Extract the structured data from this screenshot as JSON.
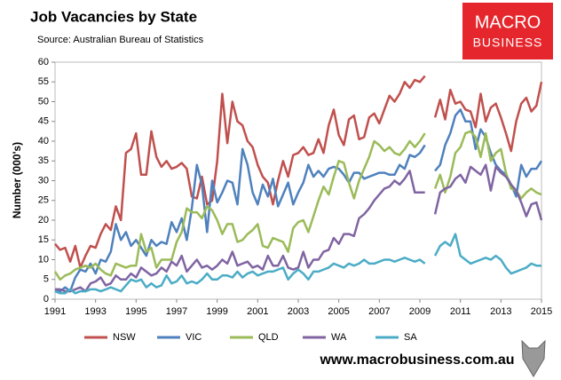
{
  "chart_data": {
    "type": "line",
    "title": "Job Vacancies by State",
    "subtitle": "Source: Australian Bureau of Statistics",
    "ylabel": "Number (000's)",
    "brand": {
      "line1": "MACRO",
      "line2": "BUSINESS",
      "url": "www.macrobusiness.com.au"
    },
    "x": [
      1991,
      1991.25,
      1991.5,
      1991.75,
      1992,
      1992.25,
      1992.5,
      1992.75,
      1993,
      1993.25,
      1993.5,
      1993.75,
      1994,
      1994.25,
      1994.5,
      1994.75,
      1995,
      1995.25,
      1995.5,
      1995.75,
      1996,
      1996.25,
      1996.5,
      1996.75,
      1997,
      1997.25,
      1997.5,
      1997.75,
      1998,
      1998.25,
      1998.5,
      1998.75,
      1999,
      1999.25,
      1999.5,
      1999.75,
      2000,
      2000.25,
      2000.5,
      2000.75,
      2001,
      2001.25,
      2001.5,
      2001.75,
      2002,
      2002.25,
      2002.5,
      2002.75,
      2003,
      2003.25,
      2003.5,
      2003.75,
      2004,
      2004.25,
      2004.5,
      2004.75,
      2005,
      2005.25,
      2005.5,
      2005.75,
      2006,
      2006.25,
      2006.5,
      2006.75,
      2007,
      2007.25,
      2007.5,
      2007.75,
      2008,
      2008.25,
      2008.5,
      2008.75,
      2009,
      2009.25,
      2009.5,
      2009.75,
      2010,
      2010.25,
      2010.5,
      2010.75,
      2011,
      2011.25,
      2011.5,
      2011.75,
      2012,
      2012.25,
      2012.5,
      2012.75,
      2013,
      2013.25,
      2013.5,
      2013.75,
      2014,
      2014.25,
      2014.5,
      2014.75,
      2015
    ],
    "series": [
      {
        "name": "NSW",
        "color": "#c0504d",
        "values": [
          14,
          12.5,
          13,
          9.5,
          13.5,
          8,
          11,
          13.5,
          13,
          16.5,
          19,
          17.5,
          23.5,
          20,
          37,
          38,
          42,
          31.5,
          31.5,
          42.5,
          36,
          33.5,
          35,
          33,
          33.5,
          34.5,
          33,
          26,
          25.5,
          31,
          24,
          25,
          35,
          52,
          39.5,
          50,
          45,
          44,
          40,
          38.5,
          34,
          31,
          29.5,
          24,
          30,
          35,
          31,
          36.5,
          37,
          38.5,
          36.5,
          37,
          40.5,
          37,
          44,
          48,
          41.5,
          39,
          45.5,
          46.5,
          40.5,
          41,
          46,
          47,
          44.5,
          48,
          51.5,
          50,
          52,
          55,
          53.5,
          55.5,
          55,
          56.5,
          null,
          46,
          50.5,
          45.5,
          53,
          49.5,
          50,
          48,
          47.5,
          43.5,
          52,
          45,
          48.5,
          49.5,
          46,
          42,
          37.5,
          45,
          49.5,
          51,
          47.5,
          49,
          55
        ]
      },
      {
        "name": "VIC",
        "color": "#4f81bd",
        "values": [
          2.5,
          2,
          3,
          2,
          5.5,
          7.5,
          7,
          9,
          6.5,
          10,
          9.5,
          12,
          19,
          15,
          17,
          13.5,
          15,
          13,
          11,
          15,
          13.5,
          14.5,
          14,
          19.5,
          17,
          20.5,
          15,
          23,
          34,
          29,
          17,
          30,
          24.5,
          27,
          30,
          29.5,
          24,
          38,
          34,
          27,
          24,
          29,
          26,
          30.5,
          23.5,
          26.5,
          29.5,
          24,
          27,
          29.5,
          34,
          31,
          32.5,
          31,
          33,
          33.5,
          33,
          31.5,
          29.5,
          32,
          32,
          30.5,
          31,
          31.5,
          32,
          32,
          31.5,
          31.5,
          34,
          33,
          36.5,
          36,
          37,
          39,
          null,
          32.5,
          34,
          39,
          42,
          46.5,
          48,
          45,
          45,
          38,
          43,
          41,
          37,
          34,
          32.5,
          31.5,
          29,
          26,
          34,
          31,
          33,
          33,
          35
        ]
      },
      {
        "name": "QLD",
        "color": "#9bbb59",
        "values": [
          7,
          5,
          6,
          6.5,
          7.5,
          8,
          8.5,
          8,
          9,
          7.5,
          6.5,
          6,
          9,
          8.5,
          8,
          8.5,
          8.5,
          16.5,
          12,
          13,
          8,
          10,
          10,
          10,
          14.5,
          17,
          23,
          22,
          22,
          20.5,
          23.5,
          22.5,
          20,
          16.5,
          19,
          19,
          14.5,
          15,
          16.5,
          17.5,
          19,
          13.5,
          13,
          15.5,
          15,
          14.5,
          12,
          18,
          19.5,
          20,
          17,
          21,
          25,
          28.5,
          26.5,
          31,
          35,
          34.5,
          29.5,
          25.5,
          30,
          33,
          36,
          40,
          39,
          37.5,
          38.5,
          37,
          36.5,
          38,
          40,
          38.5,
          40,
          42,
          null,
          28,
          31.5,
          27,
          31,
          37,
          38.5,
          42,
          42.5,
          41,
          36,
          42,
          35,
          37,
          38,
          32,
          28,
          27.5,
          25.5,
          27,
          28,
          27,
          26.5
        ]
      },
      {
        "name": "WA",
        "color": "#8064a2",
        "values": [
          2.5,
          2.5,
          2,
          2,
          2.5,
          3,
          2,
          4,
          4.5,
          5.5,
          3.5,
          4,
          6,
          5,
          5,
          6.5,
          5.5,
          8,
          7,
          6,
          6.5,
          8,
          7,
          9.5,
          8.5,
          11,
          7,
          8.5,
          10,
          8,
          8.5,
          7.5,
          8.5,
          10,
          9,
          12,
          8.5,
          9,
          9.5,
          8,
          8.5,
          7.5,
          11,
          8.5,
          8.5,
          11,
          8,
          7.5,
          8,
          12,
          8,
          10,
          10,
          12,
          12.5,
          15.5,
          14,
          16.5,
          16.5,
          16,
          20.5,
          21.5,
          23,
          25,
          26.5,
          28,
          28.5,
          30,
          29,
          30.5,
          32.5,
          27,
          27,
          27,
          null,
          21.5,
          27,
          28,
          28.5,
          30.5,
          31.5,
          29.5,
          33.5,
          32.5,
          31.5,
          34,
          27.5,
          33.5,
          32,
          31,
          29,
          27.5,
          24.5,
          21,
          24,
          24.5,
          20
        ]
      },
      {
        "name": "SA",
        "color": "#4bacc6",
        "values": [
          2,
          1.5,
          1.5,
          2.5,
          1.5,
          2,
          2,
          2.5,
          2.5,
          2,
          2.5,
          3,
          2.5,
          2,
          3.5,
          5,
          4.5,
          5,
          3,
          4,
          3,
          3.5,
          6,
          4,
          4.5,
          6,
          4,
          4.5,
          4,
          5,
          6.5,
          5,
          5,
          6,
          6,
          5.5,
          7,
          5.5,
          6.5,
          7,
          6,
          6.5,
          7,
          7,
          7.5,
          8,
          5,
          6.5,
          7.5,
          6.5,
          5,
          7,
          7,
          7.5,
          8,
          9,
          8.5,
          8,
          9,
          8.5,
          9,
          10,
          9,
          9,
          9.5,
          10,
          10,
          9.5,
          10,
          10.5,
          10,
          9.5,
          10,
          9,
          null,
          11,
          13.5,
          14.5,
          13.5,
          16.5,
          11,
          10,
          9,
          9.5,
          10,
          10.5,
          10,
          11,
          10,
          8,
          6.5,
          7,
          7.5,
          8,
          9,
          8.5,
          8.5
        ]
      }
    ],
    "xlim": [
      1991,
      2015
    ],
    "xticks": [
      1991,
      1993,
      1995,
      1997,
      1999,
      2001,
      2003,
      2005,
      2007,
      2009,
      2011,
      2013,
      2015
    ],
    "ylim": [
      0,
      60
    ],
    "yticks": [
      0,
      5,
      10,
      15,
      20,
      25,
      30,
      35,
      40,
      45,
      50,
      55,
      60
    ],
    "grid": false
  }
}
